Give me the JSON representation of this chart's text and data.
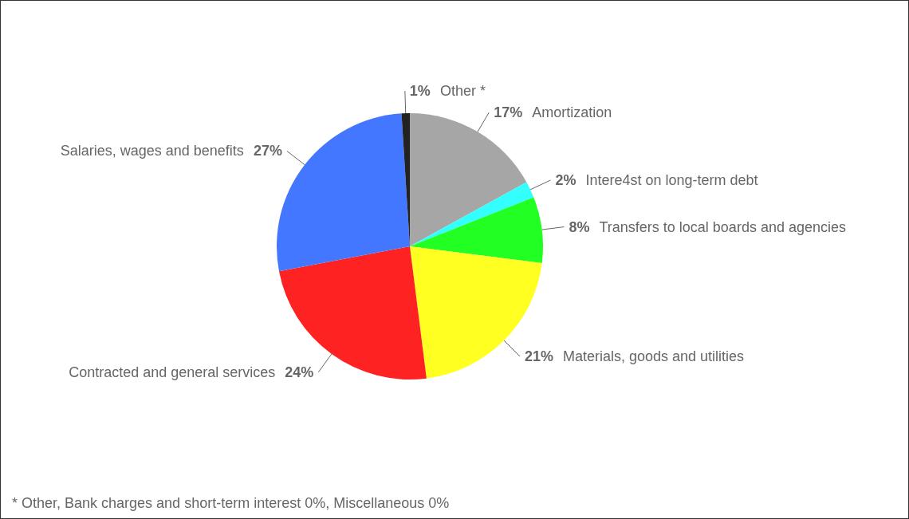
{
  "chart_data": {
    "type": "pie",
    "categories": [
      "Amortization",
      "Intere4st on long-term debt",
      "Transfers to local boards and agencies",
      "Materials, goods and utilities",
      "Contracted and general services",
      "Salaries, wages and benefits",
      "Other *"
    ],
    "values": [
      17,
      2,
      8,
      21,
      24,
      27,
      1
    ],
    "value_labels": [
      "17%",
      "2%",
      "8%",
      "21%",
      "24%",
      "27%",
      "1%"
    ],
    "colors": [
      "#a6a6a6",
      "#33ffff",
      "#22ff22",
      "#ffff22",
      "#ff2222",
      "#4477ff",
      "#222222"
    ],
    "annotations": [
      "* Other, Bank charges and short-term interest 0%, Miscellaneous 0%"
    ]
  }
}
